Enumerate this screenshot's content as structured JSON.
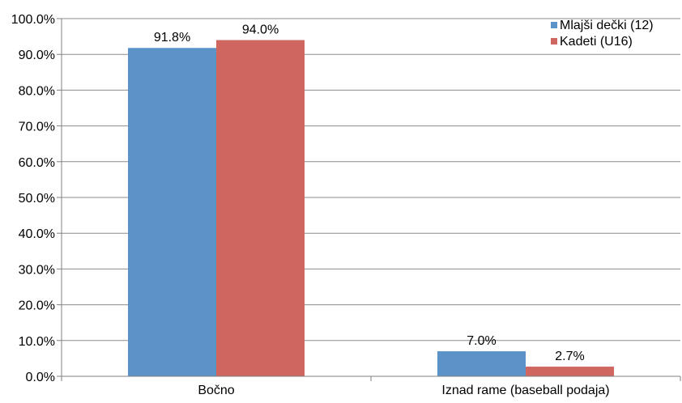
{
  "chart_data": {
    "type": "bar",
    "categories": [
      "Bočno",
      "Iznad rame (baseball podaja)"
    ],
    "series": [
      {
        "name": "Mlajši dečki (12)",
        "values": [
          91.8,
          7.0
        ],
        "color": "#5b93c9"
      },
      {
        "name": "Kadeti (U16)",
        "values": [
          94.0,
          2.7
        ],
        "color": "#cf6760"
      }
    ],
    "value_labels": [
      [
        "91.8%",
        "7.0%"
      ],
      [
        "94.0%",
        "2.7%"
      ]
    ],
    "ylim": [
      0,
      100
    ],
    "yticks": [
      "0.0%",
      "10.0%",
      "20.0%",
      "30.0%",
      "40.0%",
      "50.0%",
      "60.0%",
      "70.0%",
      "80.0%",
      "90.0%",
      "100.0%"
    ],
    "grid": true,
    "legend_position": "top-right",
    "gridline_color": "#8c8c8c",
    "axis_color": "#808080"
  }
}
